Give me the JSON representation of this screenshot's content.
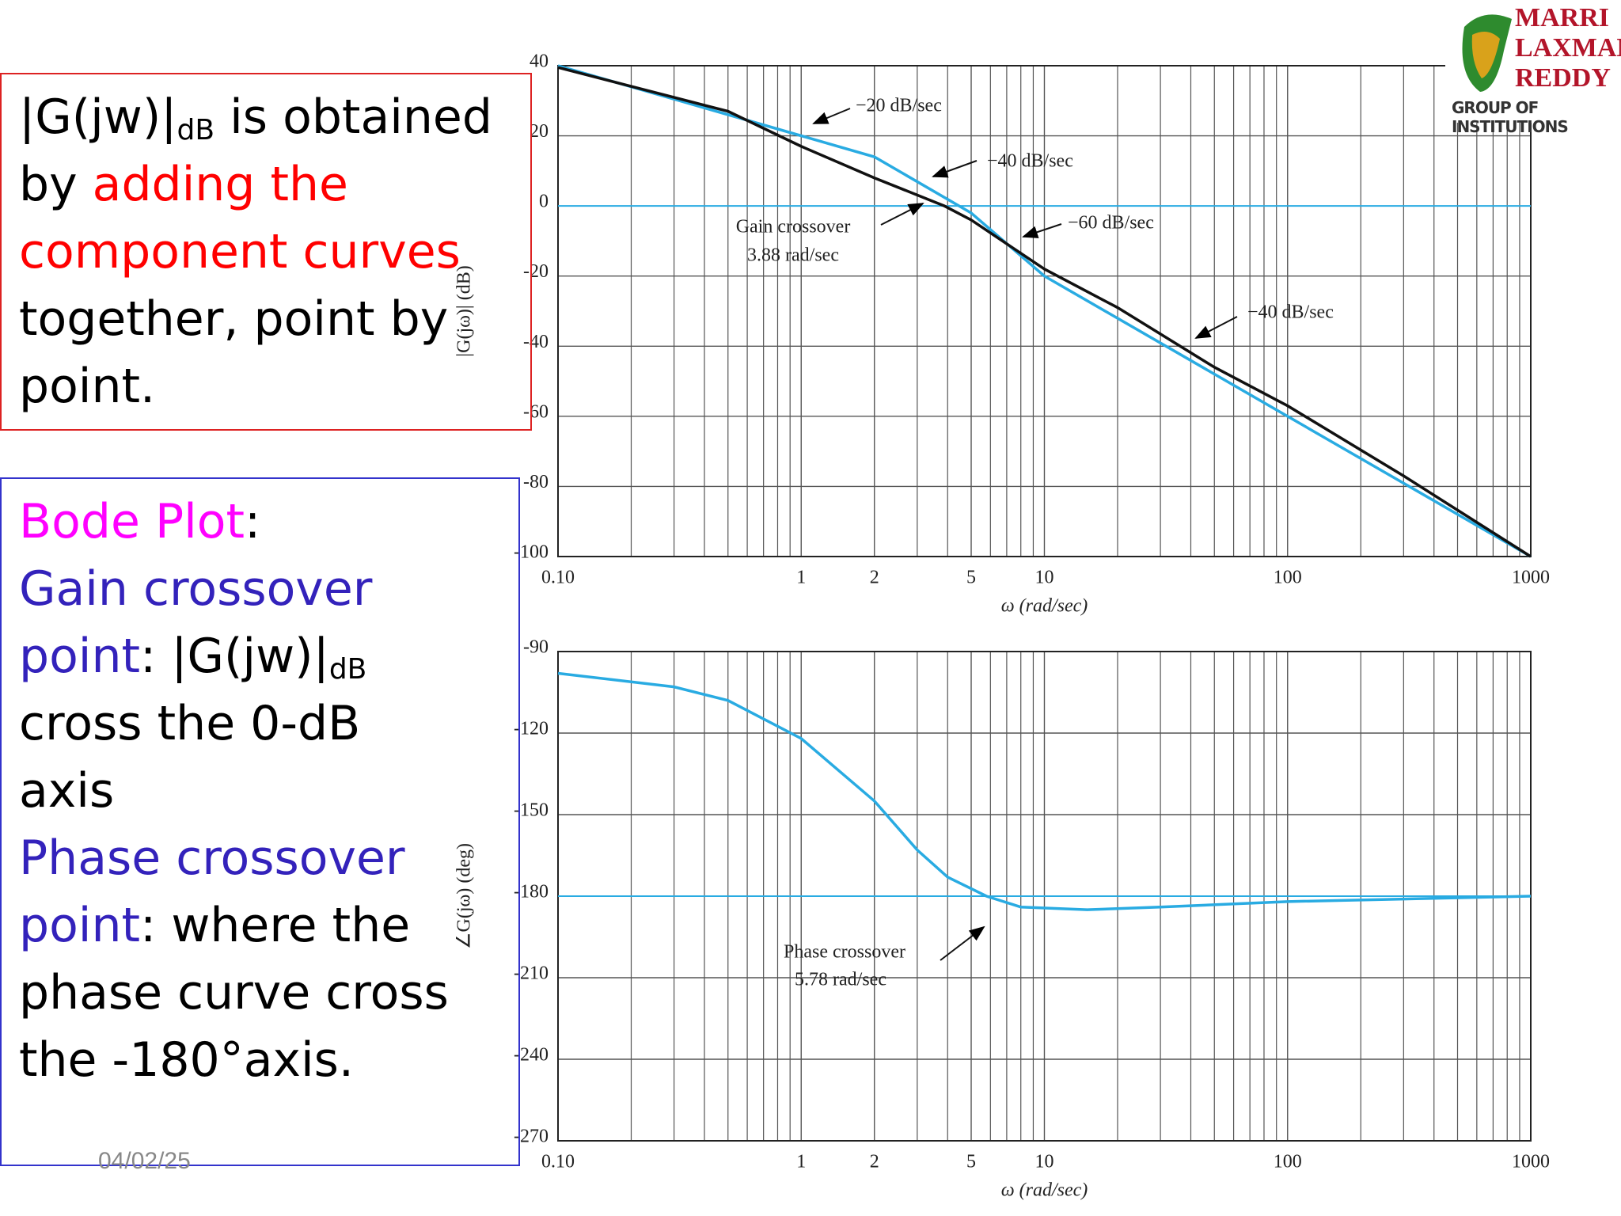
{
  "slide": {
    "box1": [
      [
        "|G(jw)|",
        "dB",
        " is obtained"
      ],
      [
        "by ",
        "adding the"
      ],
      [
        "component curves"
      ],
      [
        "together, point by"
      ],
      [
        "point."
      ]
    ],
    "box2": [
      [
        "Bode Plot",
        ":"
      ],
      [
        "Gain crossover"
      ],
      [
        "point",
        ": |G(jw)|",
        "dB"
      ],
      [
        "cross the 0-dB"
      ],
      [
        "axis"
      ],
      [
        "Phase crossover"
      ],
      [
        "point",
        ": where the"
      ],
      [
        "phase curve cross"
      ],
      [
        "the -180°axis."
      ]
    ],
    "date": "04/02/25",
    "logo": [
      "MARRI",
      "LAXMAN",
      "REDDY",
      "GROUP OF INSTITUTIONS"
    ]
  },
  "chart_data": [
    {
      "type": "line",
      "ylabel": "|G(jω)| (dB)",
      "xlabel": "ω (rad/sec)",
      "log_x": true,
      "grid": true,
      "xlim": [
        0.1,
        1000
      ],
      "xticks": [
        {
          "value": 0.1,
          "label": "0.10"
        },
        1,
        2,
        5,
        10,
        100,
        1000
      ],
      "xminor": [
        0.2,
        0.3,
        0.4,
        0.5,
        0.6,
        0.7,
        0.8,
        0.9,
        3,
        4,
        6,
        7,
        8,
        9,
        20,
        30,
        40,
        50,
        60,
        70,
        80,
        90,
        200,
        300,
        400,
        500,
        600,
        700,
        800,
        900
      ],
      "ylim": [
        -100,
        40
      ],
      "yticks": [
        -100,
        -80,
        -60,
        -40,
        -20,
        0,
        20,
        40
      ],
      "hline": 0,
      "hline_color": "#29abe2",
      "series": [
        {
          "color": "#29abe2",
          "x": [
            0.1,
            2,
            5,
            10,
            1000
          ],
          "values": [
            40,
            14,
            -2,
            -20,
            -100
          ]
        },
        {
          "color": "#111111",
          "x": [
            0.1,
            0.5,
            1,
            2,
            3.88,
            5,
            10,
            20,
            50,
            100,
            300,
            1000
          ],
          "values": [
            39.5,
            27,
            17,
            8,
            0,
            -4,
            -18,
            -29,
            -46,
            -57,
            -77,
            -100
          ]
        }
      ],
      "annotations": [
        "−20 dB/sec",
        "−40 dB/sec",
        "−60 dB/sec",
        "−40 dB/sec",
        "Gain crossover",
        "3.88 rad/sec"
      ]
    },
    {
      "type": "line",
      "ylabel": "∠G(jω) (deg)",
      "xlabel": "ω (rad/sec)",
      "log_x": true,
      "grid": true,
      "xlim": [
        0.1,
        1000
      ],
      "xticks": [
        {
          "value": 0.1,
          "label": "0.10"
        },
        1,
        2,
        5,
        10,
        100,
        1000
      ],
      "xminor": [
        0.2,
        0.3,
        0.4,
        0.5,
        0.6,
        0.7,
        0.8,
        0.9,
        3,
        4,
        6,
        7,
        8,
        9,
        20,
        30,
        40,
        50,
        60,
        70,
        80,
        90,
        200,
        300,
        400,
        500,
        600,
        700,
        800,
        900
      ],
      "ylim": [
        -270,
        -90
      ],
      "yticks": [
        -270,
        -240,
        -210,
        -180,
        -150,
        -120,
        -90
      ],
      "hline": -180,
      "hline_color": "#29abe2",
      "series": [
        {
          "color": "#29abe2",
          "x": [
            0.1,
            0.3,
            0.5,
            1,
            2,
            3,
            4,
            5.78,
            8,
            15,
            30,
            100,
            1000
          ],
          "values": [
            -98,
            -103,
            -108,
            -122,
            -145,
            -163,
            -173,
            -180,
            -184,
            -185,
            -184,
            -182,
            -180
          ]
        }
      ],
      "annotations": [
        "Phase crossover",
        "5.78 rad/sec"
      ]
    }
  ]
}
